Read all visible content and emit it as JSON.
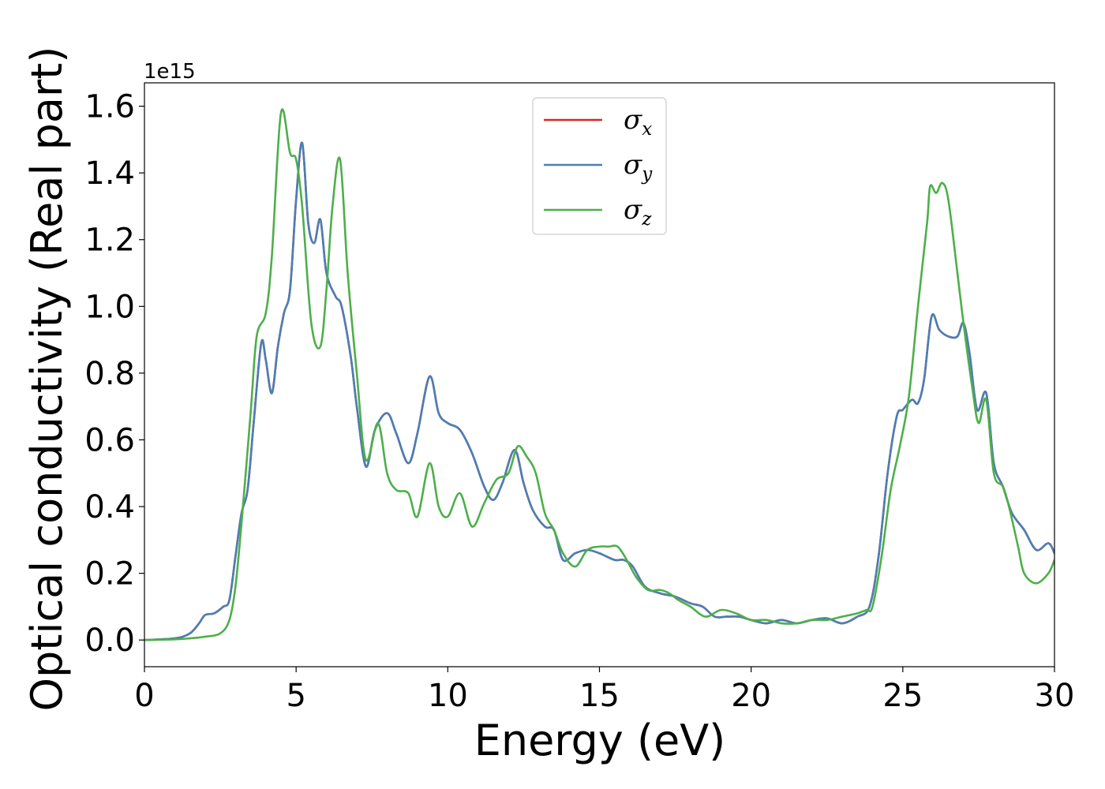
{
  "chart_data": {
    "type": "line",
    "xlabel": "Energy (eV)",
    "ylabel": "Optical conductivity (Real part)",
    "y_offset_text": "1e15",
    "xlim": [
      0,
      30
    ],
    "ylim": [
      -0.08,
      1.67
    ],
    "xticks": [
      0,
      5,
      10,
      15,
      20,
      25,
      30
    ],
    "xtick_labels": [
      "0",
      "5",
      "10",
      "15",
      "20",
      "25",
      "30"
    ],
    "yticks": [
      0.0,
      0.2,
      0.4,
      0.6,
      0.8,
      1.0,
      1.2,
      1.4,
      1.6
    ],
    "ytick_labels": [
      "0.0",
      "0.2",
      "0.4",
      "0.6",
      "0.8",
      "1.0",
      "1.2",
      "1.4",
      "1.6"
    ],
    "grid": false,
    "legend_position": "top-center",
    "series": [
      {
        "name": "σx",
        "symbol": "σ",
        "subscript": "x",
        "color": "#d62728",
        "x": [
          0,
          1,
          1.5,
          1.8,
          2.0,
          2.3,
          2.6,
          2.8,
          3.0,
          3.2,
          3.4,
          3.6,
          3.85,
          4.0,
          4.2,
          4.4,
          4.6,
          4.8,
          5.0,
          5.2,
          5.4,
          5.6,
          5.8,
          6.0,
          6.3,
          6.5,
          6.8,
          7.0,
          7.3,
          7.6,
          8.0,
          8.3,
          8.7,
          9.0,
          9.4,
          9.7,
          10.0,
          10.4,
          10.8,
          11.2,
          11.5,
          11.8,
          12.2,
          12.5,
          12.8,
          13.2,
          13.5,
          13.8,
          14.2,
          14.6,
          15.0,
          15.5,
          15.8,
          16.1,
          16.5,
          17.0,
          17.5,
          18.0,
          18.4,
          18.8,
          19.2,
          19.6,
          20.0,
          20.5,
          21.0,
          21.5,
          22.0,
          22.5,
          23.0,
          23.5,
          23.9,
          24.2,
          24.5,
          24.8,
          25.0,
          25.3,
          25.5,
          25.7,
          25.95,
          26.2,
          26.5,
          26.8,
          27.0,
          27.2,
          27.45,
          27.75,
          28.0,
          28.3,
          28.6,
          29.0,
          29.4,
          29.8,
          30.0
        ],
        "y": [
          0.0,
          0.005,
          0.02,
          0.05,
          0.075,
          0.08,
          0.1,
          0.12,
          0.25,
          0.38,
          0.45,
          0.65,
          0.89,
          0.84,
          0.74,
          0.88,
          0.98,
          1.05,
          1.32,
          1.49,
          1.25,
          1.19,
          1.26,
          1.1,
          1.03,
          1.0,
          0.85,
          0.7,
          0.52,
          0.63,
          0.68,
          0.62,
          0.53,
          0.62,
          0.79,
          0.68,
          0.65,
          0.63,
          0.56,
          0.46,
          0.42,
          0.47,
          0.57,
          0.47,
          0.39,
          0.34,
          0.33,
          0.24,
          0.26,
          0.27,
          0.26,
          0.24,
          0.24,
          0.22,
          0.16,
          0.14,
          0.13,
          0.11,
          0.1,
          0.07,
          0.07,
          0.07,
          0.06,
          0.05,
          0.06,
          0.05,
          0.06,
          0.065,
          0.05,
          0.07,
          0.1,
          0.25,
          0.5,
          0.67,
          0.69,
          0.72,
          0.71,
          0.78,
          0.97,
          0.93,
          0.91,
          0.91,
          0.95,
          0.86,
          0.69,
          0.74,
          0.53,
          0.46,
          0.38,
          0.33,
          0.27,
          0.29,
          0.26
        ]
      },
      {
        "name": "σy",
        "symbol": "σ",
        "subscript": "y",
        "color": "#4a7fb5",
        "x": [
          0,
          1,
          1.5,
          1.8,
          2.0,
          2.3,
          2.6,
          2.8,
          3.0,
          3.2,
          3.4,
          3.6,
          3.85,
          4.0,
          4.2,
          4.4,
          4.6,
          4.8,
          5.0,
          5.2,
          5.4,
          5.6,
          5.8,
          6.0,
          6.3,
          6.5,
          6.8,
          7.0,
          7.3,
          7.6,
          8.0,
          8.3,
          8.7,
          9.0,
          9.4,
          9.7,
          10.0,
          10.4,
          10.8,
          11.2,
          11.5,
          11.8,
          12.2,
          12.5,
          12.8,
          13.2,
          13.5,
          13.8,
          14.2,
          14.6,
          15.0,
          15.5,
          15.8,
          16.1,
          16.5,
          17.0,
          17.5,
          18.0,
          18.4,
          18.8,
          19.2,
          19.6,
          20.0,
          20.5,
          21.0,
          21.5,
          22.0,
          22.5,
          23.0,
          23.5,
          23.9,
          24.2,
          24.5,
          24.8,
          25.0,
          25.3,
          25.5,
          25.7,
          25.95,
          26.2,
          26.5,
          26.8,
          27.0,
          27.2,
          27.45,
          27.75,
          28.0,
          28.3,
          28.6,
          29.0,
          29.4,
          29.8,
          30.0
        ],
        "y": [
          0.0,
          0.005,
          0.02,
          0.05,
          0.075,
          0.08,
          0.1,
          0.12,
          0.25,
          0.38,
          0.45,
          0.65,
          0.89,
          0.84,
          0.74,
          0.88,
          0.98,
          1.05,
          1.32,
          1.49,
          1.25,
          1.19,
          1.26,
          1.1,
          1.03,
          1.0,
          0.85,
          0.7,
          0.52,
          0.63,
          0.68,
          0.62,
          0.53,
          0.62,
          0.79,
          0.68,
          0.65,
          0.63,
          0.56,
          0.46,
          0.42,
          0.47,
          0.57,
          0.47,
          0.39,
          0.34,
          0.33,
          0.24,
          0.26,
          0.27,
          0.26,
          0.24,
          0.24,
          0.22,
          0.16,
          0.14,
          0.13,
          0.11,
          0.1,
          0.07,
          0.07,
          0.07,
          0.06,
          0.05,
          0.06,
          0.05,
          0.06,
          0.065,
          0.05,
          0.07,
          0.1,
          0.25,
          0.5,
          0.67,
          0.69,
          0.72,
          0.71,
          0.78,
          0.97,
          0.93,
          0.91,
          0.91,
          0.95,
          0.86,
          0.69,
          0.74,
          0.53,
          0.46,
          0.38,
          0.33,
          0.27,
          0.29,
          0.26
        ]
      },
      {
        "name": "σz",
        "symbol": "σ",
        "subscript": "z",
        "color": "#4daf4a",
        "x": [
          0,
          1,
          1.5,
          2.0,
          2.5,
          2.8,
          3.0,
          3.2,
          3.5,
          3.7,
          4.0,
          4.2,
          4.5,
          4.8,
          5.0,
          5.2,
          5.5,
          5.8,
          6.0,
          6.2,
          6.45,
          6.7,
          7.0,
          7.3,
          7.7,
          8.0,
          8.3,
          8.7,
          9.0,
          9.4,
          9.7,
          10.0,
          10.4,
          10.8,
          11.2,
          11.6,
          12.0,
          12.3,
          12.6,
          12.9,
          13.2,
          13.5,
          13.8,
          14.2,
          14.6,
          15.0,
          15.3,
          15.6,
          15.9,
          16.2,
          16.6,
          17.0,
          17.3,
          17.6,
          18.0,
          18.5,
          19.0,
          19.5,
          20.0,
          20.5,
          21.0,
          21.5,
          22.0,
          22.5,
          23.0,
          23.5,
          23.8,
          24.0,
          24.3,
          24.6,
          24.9,
          25.2,
          25.5,
          25.8,
          25.9,
          26.1,
          26.3,
          26.5,
          26.8,
          27.0,
          27.3,
          27.5,
          27.75,
          28.0,
          28.3,
          28.5,
          28.8,
          29.0,
          29.4,
          29.8,
          30.0
        ],
        "y": [
          0.0,
          0.002,
          0.005,
          0.01,
          0.02,
          0.06,
          0.16,
          0.35,
          0.68,
          0.91,
          0.98,
          1.15,
          1.58,
          1.46,
          1.44,
          1.3,
          0.95,
          0.88,
          1.05,
          1.3,
          1.44,
          1.1,
          0.8,
          0.54,
          0.65,
          0.5,
          0.45,
          0.44,
          0.37,
          0.53,
          0.4,
          0.37,
          0.44,
          0.34,
          0.41,
          0.48,
          0.5,
          0.58,
          0.55,
          0.5,
          0.38,
          0.33,
          0.26,
          0.22,
          0.27,
          0.28,
          0.28,
          0.28,
          0.24,
          0.19,
          0.15,
          0.15,
          0.14,
          0.12,
          0.1,
          0.07,
          0.09,
          0.08,
          0.06,
          0.06,
          0.05,
          0.05,
          0.06,
          0.06,
          0.07,
          0.08,
          0.09,
          0.1,
          0.25,
          0.45,
          0.58,
          0.73,
          1.0,
          1.25,
          1.36,
          1.34,
          1.37,
          1.32,
          1.1,
          0.95,
          0.75,
          0.65,
          0.72,
          0.5,
          0.46,
          0.4,
          0.28,
          0.2,
          0.17,
          0.2,
          0.24
        ]
      }
    ]
  }
}
